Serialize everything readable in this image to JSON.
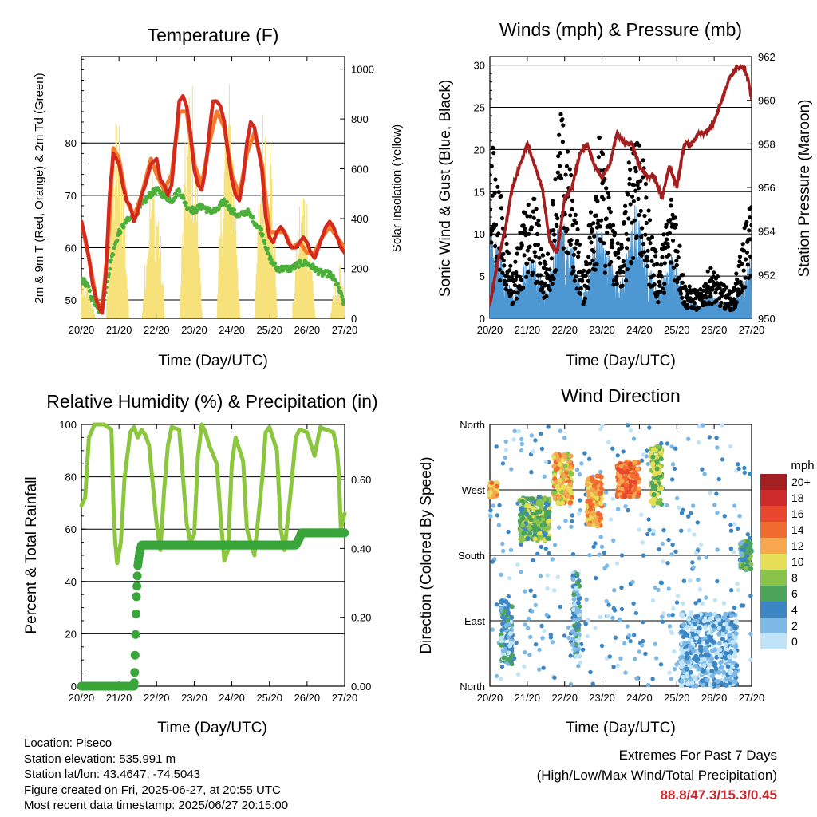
{
  "x_tick_labels": [
    "20/20",
    "21/20",
    "22/20",
    "23/20",
    "24/20",
    "25/20",
    "26/20",
    "27/20"
  ],
  "x_axis_label": "Time (Day/UTC)",
  "colors": {
    "temp_2m": "#d42a1e",
    "temp_9m": "#f47a2c",
    "dewpoint": "#4caf3a",
    "solar": "#f7e17a",
    "gust": "#000000",
    "wind": "#4d97d3",
    "pressure": "#a31f1f",
    "rh": "#8cc63f",
    "precip": "#3aa53a"
  },
  "chart_data": [
    {
      "type": "line",
      "title": "Temperature (F)",
      "xlabel": "Time (Day/UTC)",
      "ylabel": "2m & 9m T (Red, Orange) & 2m Td (Green)",
      "y2label": "Solar Insolation (Yellow)",
      "ylim": [
        46.5,
        96.5
      ],
      "yticks": [
        50,
        60,
        70,
        80
      ],
      "y2lim": [
        0,
        1050
      ],
      "y2ticks": [
        0,
        200,
        400,
        600,
        800,
        1000
      ],
      "xlim": [
        0,
        7
      ],
      "grid": true,
      "series": [
        {
          "key": "t2m",
          "color": "#d42a1e",
          "x": [
            0,
            0.1,
            0.2,
            0.3,
            0.4,
            0.5,
            0.55,
            0.65,
            0.75,
            0.85,
            1.0,
            1.1,
            1.2,
            1.3,
            1.4,
            1.5,
            1.6,
            1.7,
            1.85,
            2.0,
            2.1,
            2.2,
            2.3,
            2.4,
            2.5,
            2.6,
            2.7,
            2.8,
            2.9,
            3.0,
            3.1,
            3.2,
            3.3,
            3.4,
            3.5,
            3.6,
            3.7,
            3.8,
            3.9,
            4.0,
            4.1,
            4.2,
            4.3,
            4.4,
            4.5,
            4.6,
            4.7,
            4.8,
            4.9,
            5.0,
            5.1,
            5.2,
            5.3,
            5.4,
            5.5,
            5.6,
            5.7,
            5.8,
            5.9,
            6.0,
            6.1,
            6.2,
            6.3,
            6.4,
            6.5,
            6.6,
            6.7,
            6.8,
            6.9,
            7.0
          ],
          "y": [
            65,
            62,
            58,
            53,
            50,
            48,
            47.5,
            55,
            70,
            78,
            76,
            72,
            69,
            68,
            65,
            67,
            70,
            72,
            76,
            77,
            73,
            72,
            70,
            72,
            80,
            88,
            89,
            87,
            82,
            75,
            72,
            71,
            75,
            82,
            88,
            88,
            87,
            84,
            78,
            73,
            70,
            69,
            73,
            80,
            84,
            83,
            79,
            75,
            66,
            62,
            61,
            63,
            64,
            63,
            61,
            60,
            60,
            61,
            62,
            61,
            59,
            58,
            60,
            62,
            64,
            65,
            64,
            62,
            60,
            59
          ]
        },
        {
          "key": "t9m",
          "color": "#f47a2c",
          "x": [
            0,
            0.2,
            0.4,
            0.55,
            0.7,
            0.85,
            1.0,
            1.2,
            1.4,
            1.6,
            1.85,
            2.0,
            2.2,
            2.4,
            2.6,
            2.8,
            3.0,
            3.2,
            3.4,
            3.6,
            3.8,
            4.0,
            4.2,
            4.4,
            4.6,
            4.8,
            5.0,
            5.2,
            5.4,
            5.6,
            5.8,
            6.0,
            6.2,
            6.4,
            6.6,
            6.8,
            7.0
          ],
          "y": [
            65,
            58,
            50,
            48,
            60,
            79,
            77,
            69,
            66,
            70,
            77,
            74,
            71,
            74,
            86,
            86,
            76,
            72,
            80,
            86,
            83,
            74,
            70,
            78,
            82,
            76,
            63,
            63,
            63,
            60,
            61,
            59,
            59,
            62,
            64,
            62,
            60
          ]
        },
        {
          "key": "td",
          "color": "#4caf3a",
          "x": [
            0,
            0.15,
            0.3,
            0.45,
            0.55,
            0.65,
            0.8,
            1.0,
            1.1,
            1.2,
            1.4,
            1.6,
            1.8,
            2.0,
            2.2,
            2.4,
            2.6,
            2.8,
            3.0,
            3.2,
            3.4,
            3.6,
            3.8,
            4.0,
            4.2,
            4.4,
            4.6,
            4.8,
            5.0,
            5.2,
            5.4,
            5.6,
            5.8,
            6.0,
            6.2,
            6.4,
            6.6,
            6.8,
            6.9,
            7.0
          ],
          "y": [
            54,
            53,
            50,
            48,
            49,
            52,
            58,
            63,
            64,
            65,
            66,
            68,
            70,
            71,
            70,
            69,
            71,
            68,
            67,
            68,
            67,
            67,
            69,
            67,
            66,
            67,
            65,
            63,
            58,
            56,
            56,
            56,
            57,
            57,
            56,
            55,
            55,
            53,
            51,
            49
          ]
        }
      ],
      "solar_peak_x": [
        0.05,
        0.95,
        1.9,
        2.9,
        3.9,
        4.9,
        5.9,
        6.9
      ],
      "solar_peak_value": [
        180,
        880,
        640,
        1000,
        1000,
        980,
        600,
        220
      ]
    },
    {
      "type": "scatter",
      "title": "Winds (mph) & Pressure (mb)",
      "xlabel": "Time (Day/UTC)",
      "ylabel": "Sonic Wind & Gust (Blue, Black)",
      "y2label": "Station Pressure (Maroon)",
      "ylim": [
        0,
        31
      ],
      "yticks": [
        0,
        5,
        10,
        15,
        20,
        25,
        30
      ],
      "y2lim": [
        950,
        962
      ],
      "y2ticks": [
        950,
        952,
        954,
        956,
        958,
        960,
        962
      ],
      "xlim": [
        0,
        7
      ],
      "grid": true,
      "gust_envelope_mph": [
        [
          0.0,
          22
        ],
        [
          0.3,
          14
        ],
        [
          0.6,
          5
        ],
        [
          0.9,
          12
        ],
        [
          1.2,
          14
        ],
        [
          1.5,
          6
        ],
        [
          1.9,
          24
        ],
        [
          2.2,
          16
        ],
        [
          2.5,
          5
        ],
        [
          2.9,
          22
        ],
        [
          3.2,
          14
        ],
        [
          3.5,
          8
        ],
        [
          3.9,
          26
        ],
        [
          4.2,
          14
        ],
        [
          4.5,
          6
        ],
        [
          4.9,
          16
        ],
        [
          5.2,
          4
        ],
        [
          5.6,
          3
        ],
        [
          5.9,
          6
        ],
        [
          6.2,
          4
        ],
        [
          6.5,
          3
        ],
        [
          6.8,
          10
        ],
        [
          7.0,
          14
        ]
      ],
      "pressure_series": {
        "key": "pressure",
        "color": "#a31f1f",
        "x": [
          0,
          0.2,
          0.4,
          0.6,
          0.8,
          1.0,
          1.2,
          1.4,
          1.6,
          1.8,
          2.0,
          2.2,
          2.4,
          2.6,
          2.8,
          3.0,
          3.2,
          3.4,
          3.6,
          3.8,
          4.0,
          4.2,
          4.4,
          4.6,
          4.8,
          5.0,
          5.2,
          5.4,
          5.6,
          5.8,
          6.0,
          6.2,
          6.4,
          6.6,
          6.8,
          6.9,
          7.0
        ],
        "y": [
          950.6,
          952.5,
          954,
          956,
          957,
          958,
          957,
          956,
          953.5,
          953,
          955.5,
          956,
          957.5,
          958,
          957,
          956.5,
          957,
          958.5,
          958,
          958,
          957,
          956.5,
          956.5,
          955.5,
          957,
          956,
          958,
          958,
          958.5,
          958.5,
          959,
          960,
          961,
          961.5,
          961.5,
          961,
          960
        ]
      }
    },
    {
      "type": "line",
      "title": "Relative Humidity (%) & Precipitation (in)",
      "xlabel": "Time (Day/UTC)",
      "ylabel": "Percent & Total Rainfall",
      "ylim": [
        0,
        100
      ],
      "yticks": [
        0,
        20,
        40,
        60,
        80,
        100
      ],
      "y2lim": [
        0,
        0.76
      ],
      "y2ticks": [
        "0.00",
        "0.20",
        "0.40",
        "0.60"
      ],
      "xlim": [
        0,
        7
      ],
      "grid": true,
      "series": [
        {
          "key": "rh",
          "name": "Relative Humidity",
          "color": "#8cc63f",
          "x": [
            0,
            0.1,
            0.2,
            0.35,
            0.5,
            0.6,
            0.8,
            0.85,
            0.9,
            0.95,
            1.05,
            1.15,
            1.3,
            1.4,
            1.5,
            1.6,
            1.7,
            1.8,
            2.0,
            2.1,
            2.2,
            2.3,
            2.4,
            2.6,
            2.7,
            2.8,
            2.9,
            3.0,
            3.1,
            3.2,
            3.3,
            3.4,
            3.6,
            3.7,
            3.8,
            3.9,
            4.0,
            4.1,
            4.3,
            4.4,
            4.6,
            4.8,
            4.9,
            5.0,
            5.2,
            5.3,
            5.4,
            5.55,
            5.7,
            5.8,
            6.0,
            6.2,
            6.35,
            6.5,
            6.7,
            6.8,
            6.85,
            6.9,
            7.0
          ],
          "y": [
            69,
            72,
            95,
            100,
            100,
            100,
            98,
            70,
            55,
            47,
            55,
            80,
            97,
            99,
            95,
            98,
            96,
            92,
            62,
            52,
            75,
            92,
            99,
            98,
            80,
            62,
            55,
            58,
            88,
            100,
            97,
            92,
            85,
            65,
            48,
            52,
            85,
            95,
            86,
            60,
            50,
            78,
            97,
            99,
            90,
            60,
            52,
            72,
            95,
            98,
            97,
            88,
            99,
            98,
            97,
            90,
            80,
            60,
            66
          ]
        },
        {
          "key": "precip",
          "name": "Total Precipitation",
          "color": "#3aa53a",
          "x": [
            0,
            1.3,
            1.4,
            1.42,
            1.44,
            1.46,
            1.48,
            1.5,
            1.55,
            1.6,
            2.0,
            3.0,
            4.0,
            5.0,
            5.7,
            5.8,
            5.85,
            6.0,
            6.5,
            7.0
          ],
          "y": [
            0,
            0,
            0,
            0.05,
            0.15,
            0.25,
            0.3,
            0.35,
            0.39,
            0.41,
            0.41,
            0.41,
            0.41,
            0.41,
            0.41,
            0.43,
            0.445,
            0.445,
            0.445,
            0.445
          ]
        }
      ]
    },
    {
      "type": "scatter",
      "title": "Wind Direction",
      "xlabel": "Time (Day/UTC)",
      "ylabel": "Direction (Colored By Speed)",
      "yticks": [
        "North",
        "West",
        "South",
        "East",
        "North"
      ],
      "ylim": [
        0,
        360
      ],
      "xlim": [
        0,
        7
      ],
      "grid": true,
      "colorbar": {
        "title": "mph",
        "labels": [
          "20+",
          "18",
          "16",
          "14",
          "12",
          "10",
          "8",
          "6",
          "4",
          "2",
          "0"
        ],
        "colors": [
          "#a41f22",
          "#cd2b2c",
          "#e8462f",
          "#f16b30",
          "#f7a84e",
          "#e6de57",
          "#8bc34a",
          "#4ca45a",
          "#3c86c4",
          "#7cb9e6",
          "#bfe4f7"
        ]
      },
      "direction_clusters": [
        {
          "x": [
            0.0,
            0.2
          ],
          "dir": [
            260,
            280
          ],
          "speed": 12
        },
        {
          "x": [
            0.3,
            0.6
          ],
          "dir": [
            30,
            120
          ],
          "speed": 3
        },
        {
          "x": [
            0.8,
            1.6
          ],
          "dir": [
            200,
            260
          ],
          "speed": 7
        },
        {
          "x": [
            1.7,
            2.2
          ],
          "dir": [
            250,
            320
          ],
          "speed": 11
        },
        {
          "x": [
            2.2,
            2.4
          ],
          "dir": [
            40,
            160
          ],
          "speed": 3
        },
        {
          "x": [
            2.6,
            3.0
          ],
          "dir": [
            220,
            290
          ],
          "speed": 12
        },
        {
          "x": [
            3.4,
            4.0
          ],
          "dir": [
            260,
            310
          ],
          "speed": 14
        },
        {
          "x": [
            4.3,
            4.6
          ],
          "dir": [
            250,
            330
          ],
          "speed": 8
        },
        {
          "x": [
            5.1,
            6.6
          ],
          "dir": [
            0,
            100
          ],
          "speed": 2
        },
        {
          "x": [
            6.7,
            7.0
          ],
          "dir": [
            160,
            200
          ],
          "speed": 5
        }
      ]
    }
  ],
  "info": {
    "location": "Location: Piseco",
    "elevation": "Station elevation: 535.991 m",
    "latlon": "Station lat/lon: 43.4647; -74.5043",
    "created": "Figure created on Fri, 2025-06-27, at 20:55 UTC",
    "recent": "Most recent data timestamp: 2025/06/27 20:15:00"
  },
  "extremes": {
    "title": "Extremes For Past 7 Days",
    "subtitle": "(High/Low/Max Wind/Total Precipitation)",
    "values": "88.8/47.3/15.3/0.45"
  }
}
